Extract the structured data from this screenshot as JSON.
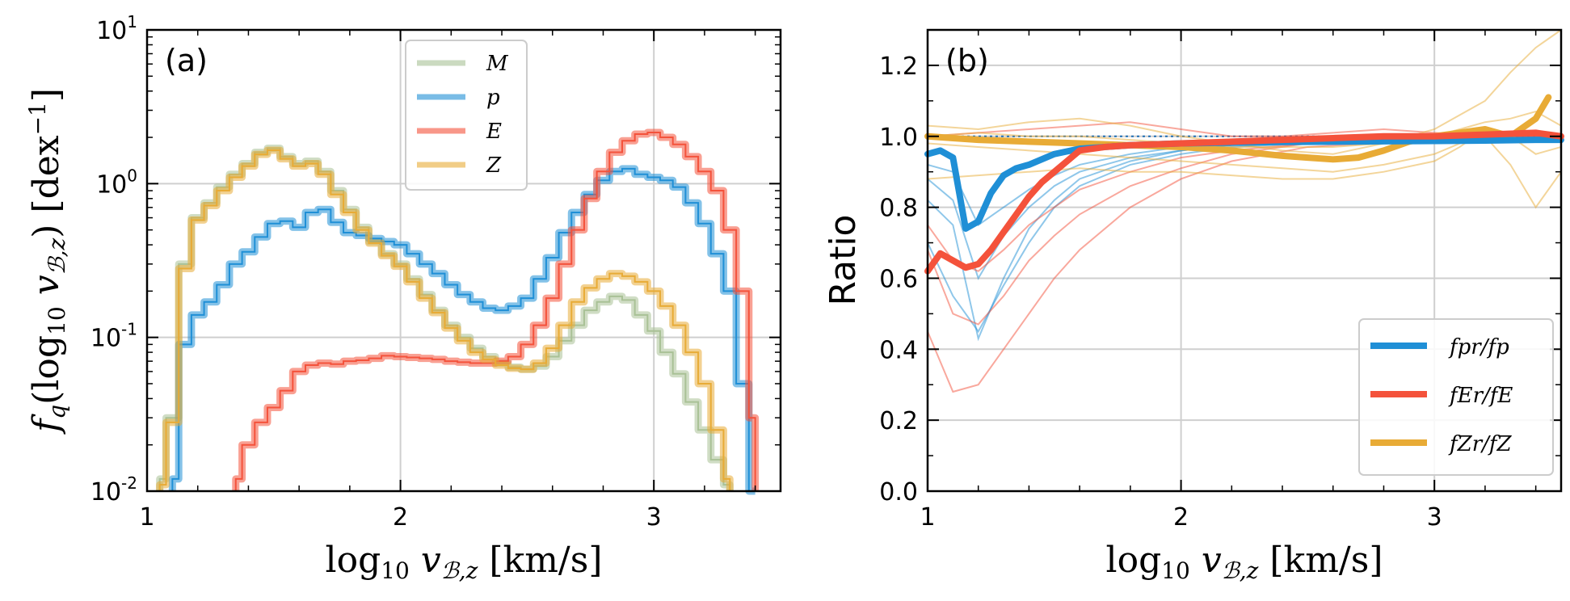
{
  "chart_data": [
    {
      "type": "line",
      "panel_label": "(a)",
      "xlabel": "log10 vB,z [km/s]",
      "ylabel": "fq(log10 vB,z) [dex^-1]",
      "xlim": [
        1.0,
        3.5
      ],
      "ylim": [
        0.01,
        10
      ],
      "yscale": "log",
      "grid": true,
      "legend_position": "top-center",
      "xticks": [
        {
          "v": 1,
          "label": "1"
        },
        {
          "v": 2,
          "label": "2"
        },
        {
          "v": 3,
          "label": "3"
        }
      ],
      "yticks": [
        {
          "v": 0.01,
          "base": "10",
          "exp": "-2"
        },
        {
          "v": 0.1,
          "base": "10",
          "exp": "-1"
        },
        {
          "v": 1,
          "base": "10",
          "exp": "0"
        },
        {
          "v": 10,
          "base": "10",
          "exp": "1"
        }
      ],
      "series": [
        {
          "name": "M",
          "color": "#a9c196",
          "x": [
            1.05,
            1.1,
            1.15,
            1.2,
            1.25,
            1.3,
            1.35,
            1.4,
            1.45,
            1.5,
            1.55,
            1.6,
            1.65,
            1.7,
            1.75,
            1.8,
            1.85,
            1.9,
            1.95,
            2.0,
            2.05,
            2.1,
            2.15,
            2.2,
            2.25,
            2.3,
            2.35,
            2.4,
            2.45,
            2.5,
            2.55,
            2.6,
            2.65,
            2.7,
            2.75,
            2.8,
            2.85,
            2.9,
            2.95,
            3.0,
            3.05,
            3.1,
            3.15,
            3.2,
            3.25,
            3.3
          ],
          "y": [
            0.012,
            0.03,
            0.3,
            0.6,
            0.75,
            0.95,
            1.15,
            1.35,
            1.6,
            1.7,
            1.5,
            1.35,
            1.4,
            1.2,
            0.9,
            0.68,
            0.52,
            0.42,
            0.35,
            0.3,
            0.24,
            0.19,
            0.15,
            0.12,
            0.1,
            0.085,
            0.075,
            0.068,
            0.064,
            0.062,
            0.065,
            0.075,
            0.095,
            0.12,
            0.15,
            0.17,
            0.185,
            0.175,
            0.14,
            0.11,
            0.08,
            0.058,
            0.038,
            0.025,
            0.016,
            0.011
          ]
        },
        {
          "name": "p",
          "color": "#1f8fd6",
          "x": [
            1.1,
            1.15,
            1.2,
            1.25,
            1.3,
            1.35,
            1.4,
            1.45,
            1.5,
            1.55,
            1.6,
            1.65,
            1.7,
            1.75,
            1.8,
            1.85,
            1.9,
            1.95,
            2.0,
            2.05,
            2.1,
            2.15,
            2.2,
            2.25,
            2.3,
            2.35,
            2.4,
            2.45,
            2.5,
            2.55,
            2.6,
            2.65,
            2.7,
            2.75,
            2.8,
            2.85,
            2.9,
            2.95,
            3.0,
            3.05,
            3.1,
            3.15,
            3.2,
            3.25,
            3.3,
            3.35,
            3.4
          ],
          "y": [
            0.012,
            0.09,
            0.14,
            0.17,
            0.22,
            0.3,
            0.36,
            0.45,
            0.55,
            0.57,
            0.52,
            0.65,
            0.68,
            0.56,
            0.48,
            0.46,
            0.44,
            0.42,
            0.4,
            0.35,
            0.3,
            0.26,
            0.22,
            0.19,
            0.17,
            0.155,
            0.15,
            0.16,
            0.18,
            0.24,
            0.33,
            0.48,
            0.65,
            0.85,
            1.05,
            1.2,
            1.25,
            1.15,
            1.1,
            1.05,
            0.95,
            0.75,
            0.55,
            0.35,
            0.2,
            0.05,
            0.01
          ]
        },
        {
          "name": "E",
          "color": "#f4523b",
          "x": [
            1.35,
            1.4,
            1.45,
            1.5,
            1.55,
            1.6,
            1.65,
            1.7,
            1.75,
            1.8,
            1.85,
            1.9,
            1.95,
            2.0,
            2.05,
            2.1,
            2.15,
            2.2,
            2.25,
            2.3,
            2.35,
            2.4,
            2.45,
            2.5,
            2.55,
            2.6,
            2.65,
            2.7,
            2.75,
            2.8,
            2.85,
            2.9,
            2.95,
            3.0,
            3.05,
            3.1,
            3.15,
            3.2,
            3.25,
            3.3,
            3.35,
            3.4
          ],
          "y": [
            0.012,
            0.02,
            0.028,
            0.035,
            0.045,
            0.06,
            0.066,
            0.068,
            0.067,
            0.07,
            0.071,
            0.073,
            0.076,
            0.075,
            0.074,
            0.073,
            0.072,
            0.07,
            0.069,
            0.068,
            0.068,
            0.07,
            0.075,
            0.09,
            0.12,
            0.18,
            0.3,
            0.5,
            0.8,
            1.2,
            1.6,
            1.9,
            2.1,
            2.15,
            2.0,
            1.8,
            1.5,
            1.2,
            0.9,
            0.5,
            0.2,
            0.03
          ]
        },
        {
          "name": "Z",
          "color": "#e8ab36",
          "x": [
            1.05,
            1.1,
            1.15,
            1.2,
            1.25,
            1.3,
            1.35,
            1.4,
            1.45,
            1.5,
            1.55,
            1.6,
            1.65,
            1.7,
            1.75,
            1.8,
            1.85,
            1.9,
            1.95,
            2.0,
            2.05,
            2.1,
            2.15,
            2.2,
            2.25,
            2.3,
            2.35,
            2.4,
            2.45,
            2.5,
            2.55,
            2.6,
            2.65,
            2.7,
            2.75,
            2.8,
            2.85,
            2.9,
            2.95,
            3.0,
            3.05,
            3.1,
            3.15,
            3.2,
            3.25,
            3.3
          ],
          "y": [
            0.011,
            0.028,
            0.28,
            0.58,
            0.72,
            0.9,
            1.1,
            1.3,
            1.55,
            1.65,
            1.45,
            1.3,
            1.35,
            1.15,
            0.85,
            0.65,
            0.5,
            0.41,
            0.34,
            0.29,
            0.23,
            0.18,
            0.145,
            0.115,
            0.095,
            0.08,
            0.072,
            0.066,
            0.063,
            0.062,
            0.068,
            0.085,
            0.12,
            0.17,
            0.21,
            0.24,
            0.26,
            0.25,
            0.23,
            0.2,
            0.16,
            0.12,
            0.08,
            0.05,
            0.025,
            0.012
          ]
        }
      ]
    },
    {
      "type": "line",
      "panel_label": "(b)",
      "xlabel": "log10 vB,z [km/s]",
      "ylabel": "Ratio",
      "xlim": [
        1.0,
        3.5
      ],
      "ylim": [
        0.0,
        1.3
      ],
      "grid": true,
      "reference_line": 1.0,
      "legend_position": "bottom-right",
      "xticks": [
        {
          "v": 1,
          "label": "1"
        },
        {
          "v": 2,
          "label": "2"
        },
        {
          "v": 3,
          "label": "3"
        }
      ],
      "yticks": [
        {
          "v": 0.0,
          "label": "0.0"
        },
        {
          "v": 0.2,
          "label": "0.2"
        },
        {
          "v": 0.4,
          "label": "0.4"
        },
        {
          "v": 0.6,
          "label": "0.6"
        },
        {
          "v": 0.8,
          "label": "0.8"
        },
        {
          "v": 1.0,
          "label": "1.0"
        },
        {
          "v": 1.2,
          "label": "1.2"
        }
      ],
      "series": [
        {
          "name": "fp^r/fp",
          "legend_label": "fpr/fp",
          "color": "#1f8fd6",
          "x": [
            1.0,
            1.05,
            1.1,
            1.15,
            1.2,
            1.25,
            1.3,
            1.35,
            1.4,
            1.5,
            1.6,
            1.7,
            1.8,
            2.0,
            2.2,
            2.4,
            2.6,
            2.8,
            3.0,
            3.2,
            3.4,
            3.5
          ],
          "y": [
            0.95,
            0.96,
            0.94,
            0.74,
            0.76,
            0.84,
            0.89,
            0.91,
            0.92,
            0.95,
            0.965,
            0.97,
            0.975,
            0.98,
            0.982,
            0.984,
            0.985,
            0.986,
            0.987,
            0.988,
            0.99,
            0.99
          ]
        },
        {
          "name": "fE^r/fE",
          "legend_label": "fEr/fE",
          "color": "#f4523b",
          "x": [
            1.0,
            1.05,
            1.1,
            1.15,
            1.2,
            1.25,
            1.3,
            1.35,
            1.4,
            1.45,
            1.5,
            1.55,
            1.6,
            1.7,
            1.8,
            2.0,
            2.2,
            2.4,
            2.6,
            2.8,
            3.0,
            3.2,
            3.4,
            3.5
          ],
          "y": [
            0.62,
            0.67,
            0.65,
            0.63,
            0.64,
            0.68,
            0.73,
            0.78,
            0.83,
            0.87,
            0.9,
            0.93,
            0.96,
            0.97,
            0.975,
            0.98,
            0.985,
            0.99,
            0.995,
            1.0,
            1.0,
            1.005,
            1.01,
            1.0
          ]
        },
        {
          "name": "fZ^r/fZ",
          "legend_label": "fZr/fZ",
          "color": "#e8ab36",
          "x": [
            1.0,
            1.1,
            1.2,
            1.4,
            1.6,
            1.8,
            2.0,
            2.2,
            2.4,
            2.5,
            2.6,
            2.7,
            2.8,
            2.9,
            3.0,
            3.1,
            3.2,
            3.3,
            3.4,
            3.45
          ],
          "y": [
            1.0,
            0.995,
            0.99,
            0.985,
            0.98,
            0.975,
            0.97,
            0.96,
            0.945,
            0.94,
            0.935,
            0.94,
            0.96,
            0.985,
            1.0,
            1.01,
            1.02,
            1.0,
            1.05,
            1.11
          ]
        }
      ],
      "faint_series": [
        {
          "color": "#1f8fd6",
          "x": [
            1.0,
            1.1,
            1.2,
            1.3,
            1.4,
            1.5,
            1.6,
            1.8,
            2.0,
            2.2,
            2.5,
            3.0,
            3.5
          ],
          "y": [
            0.7,
            0.55,
            0.45,
            0.58,
            0.7,
            0.8,
            0.86,
            0.92,
            0.95,
            0.97,
            0.98,
            0.99,
            0.99
          ]
        },
        {
          "color": "#1f8fd6",
          "x": [
            1.0,
            1.1,
            1.2,
            1.3,
            1.4,
            1.5,
            1.6,
            1.8,
            2.0,
            2.2,
            2.5,
            3.0,
            3.5
          ],
          "y": [
            0.82,
            0.75,
            0.43,
            0.6,
            0.74,
            0.82,
            0.88,
            0.93,
            0.96,
            0.975,
            0.98,
            0.99,
            0.99
          ]
        },
        {
          "color": "#1f8fd6",
          "x": [
            1.0,
            1.1,
            1.2,
            1.3,
            1.4,
            1.5,
            1.6,
            1.8,
            2.0,
            2.2,
            2.5,
            3.0,
            3.5
          ],
          "y": [
            0.88,
            0.82,
            0.6,
            0.72,
            0.8,
            0.86,
            0.9,
            0.94,
            0.96,
            0.975,
            0.985,
            0.99,
            0.99
          ]
        },
        {
          "color": "#1f8fd6",
          "x": [
            1.0,
            1.1,
            1.2,
            1.3,
            1.4,
            1.5,
            1.6,
            1.8,
            2.0,
            2.2,
            2.5,
            3.0,
            3.5
          ],
          "y": [
            0.92,
            0.9,
            0.75,
            0.8,
            0.85,
            0.89,
            0.92,
            0.95,
            0.97,
            0.98,
            0.985,
            0.99,
            0.99
          ]
        },
        {
          "color": "#f4523b",
          "x": [
            1.0,
            1.1,
            1.2,
            1.3,
            1.4,
            1.5,
            1.6,
            1.8,
            2.0,
            2.2,
            2.5,
            3.0,
            3.5
          ],
          "y": [
            0.45,
            0.28,
            0.3,
            0.4,
            0.5,
            0.6,
            0.68,
            0.8,
            0.88,
            0.93,
            0.97,
            0.99,
            1.0
          ]
        },
        {
          "color": "#f4523b",
          "x": [
            1.0,
            1.1,
            1.2,
            1.3,
            1.4,
            1.5,
            1.6,
            1.8,
            2.0,
            2.2,
            2.5,
            3.0,
            3.5
          ],
          "y": [
            0.68,
            0.5,
            0.47,
            0.55,
            0.65,
            0.72,
            0.78,
            0.86,
            0.91,
            0.95,
            0.98,
            1.0,
            1.0
          ]
        },
        {
          "color": "#f4523b",
          "x": [
            1.0,
            1.1,
            1.2,
            1.3,
            1.4,
            1.5,
            1.6,
            1.8,
            2.0,
            2.2,
            2.5,
            3.0,
            3.5
          ],
          "y": [
            0.75,
            0.65,
            0.62,
            0.68,
            0.75,
            0.8,
            0.85,
            0.9,
            0.94,
            0.96,
            0.98,
            1.0,
            1.0
          ]
        },
        {
          "color": "#f4523b",
          "x": [
            1.0,
            1.2,
            1.4,
            1.6,
            1.8,
            2.0,
            2.2,
            2.4,
            2.6,
            2.8,
            3.0,
            3.2,
            3.5
          ],
          "y": [
            1.0,
            1.01,
            1.02,
            1.03,
            1.04,
            1.02,
            1.0,
            1.0,
            1.01,
            1.02,
            1.01,
            1.0,
            1.0
          ]
        },
        {
          "color": "#e8ab36",
          "x": [
            1.0,
            1.2,
            1.4,
            1.6,
            1.8,
            2.0,
            2.2,
            2.4,
            2.6,
            2.8,
            3.0,
            3.1,
            3.2,
            3.3,
            3.4,
            3.5
          ],
          "y": [
            1.03,
            1.02,
            1.04,
            1.05,
            1.03,
            1.0,
            0.98,
            0.96,
            0.95,
            0.98,
            1.02,
            1.06,
            1.1,
            1.18,
            1.25,
            1.32
          ]
        },
        {
          "color": "#e8ab36",
          "x": [
            1.0,
            1.2,
            1.4,
            1.6,
            1.8,
            2.0,
            2.2,
            2.4,
            2.6,
            2.8,
            3.0,
            3.1,
            3.2,
            3.3,
            3.4,
            3.5
          ],
          "y": [
            0.98,
            0.97,
            0.96,
            0.95,
            0.94,
            0.93,
            0.92,
            0.91,
            0.9,
            0.92,
            0.95,
            0.98,
            1.0,
            0.92,
            0.8,
            0.9
          ]
        },
        {
          "color": "#e8ab36",
          "x": [
            1.0,
            1.2,
            1.4,
            1.6,
            1.8,
            2.0,
            2.2,
            2.4,
            2.6,
            2.8,
            3.0,
            3.1,
            3.2,
            3.3,
            3.4,
            3.5
          ],
          "y": [
            0.88,
            0.89,
            0.9,
            0.91,
            0.9,
            0.9,
            0.89,
            0.88,
            0.88,
            0.9,
            0.93,
            0.97,
            1.02,
            1.0,
            0.95,
            0.97
          ]
        },
        {
          "color": "#e8ab36",
          "x": [
            1.0,
            1.2,
            1.4,
            1.6,
            1.8,
            2.0,
            2.2,
            2.4,
            2.6,
            2.8,
            3.0,
            3.1,
            3.2,
            3.3,
            3.4,
            3.5
          ],
          "y": [
            1.0,
            1.01,
            1.0,
            1.0,
            0.99,
            0.98,
            0.97,
            0.97,
            0.97,
            0.98,
            1.0,
            1.02,
            1.04,
            1.05,
            1.07,
            1.03
          ]
        }
      ]
    }
  ]
}
